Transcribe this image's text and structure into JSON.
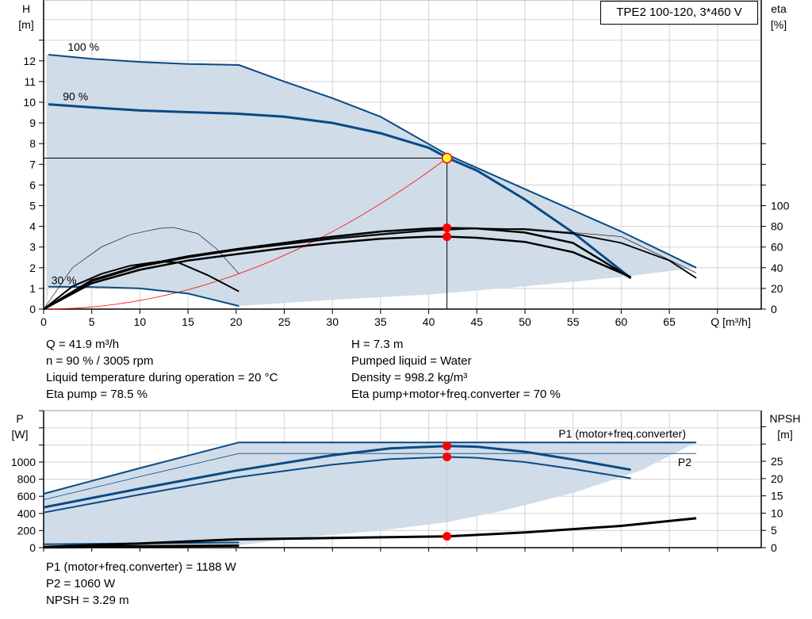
{
  "title": "TPE2 100-120, 3*460 V",
  "colors": {
    "curve": "#0a4a85",
    "fill": "#d0dce8",
    "eta": "#000000",
    "system": "#ff0000",
    "dot": "#ff0000",
    "op_point": "#ffff33",
    "grid": "#d9d9d9"
  },
  "chart_data": [
    {
      "type": "line",
      "ylabel_left": [
        "H",
        "[m]"
      ],
      "ylabel_right": [
        "eta",
        "[%]"
      ],
      "xlabel": "Q [m³/h]",
      "xlim": [
        0,
        74.5
      ],
      "ylim": [
        0,
        15
      ],
      "xticks": [
        0,
        5,
        10,
        15,
        20,
        25,
        30,
        35,
        40,
        45,
        50,
        55,
        60,
        65
      ],
      "yticks": [
        0,
        1,
        2,
        3,
        4,
        5,
        6,
        7,
        8,
        9,
        10,
        11,
        12
      ],
      "yticks_right": [
        0,
        20,
        40,
        60,
        80,
        100
      ],
      "grid": true,
      "curve_labels": [
        {
          "text": "100 %",
          "q": 2.5,
          "h": 12.5
        },
        {
          "text": "90 %",
          "q": 2,
          "h": 10.1
        },
        {
          "text": "30 %",
          "q": 0.8,
          "h": 1.2
        }
      ],
      "head_curves": [
        {
          "speed": "100 %",
          "points": [
            [
              0.5,
              12.3
            ],
            [
              5,
              12.1
            ],
            [
              10,
              11.95
            ],
            [
              15,
              11.85
            ],
            [
              20.3,
              11.8
            ],
            [
              25,
              11.0
            ],
            [
              30,
              10.2
            ],
            [
              35,
              9.3
            ],
            [
              42,
              7.45
            ],
            [
              50,
              5.8
            ],
            [
              60,
              3.75
            ],
            [
              67.8,
              2.0
            ]
          ]
        },
        {
          "speed": "90 %",
          "points": [
            [
              0.5,
              9.9
            ],
            [
              5,
              9.75
            ],
            [
              10,
              9.6
            ],
            [
              15,
              9.52
            ],
            [
              20,
              9.45
            ],
            [
              25,
              9.3
            ],
            [
              30,
              9.0
            ],
            [
              35,
              8.5
            ],
            [
              40,
              7.8
            ],
            [
              42,
              7.3
            ],
            [
              45,
              6.7
            ],
            [
              50,
              5.3
            ],
            [
              55,
              3.7
            ],
            [
              61,
              1.5
            ]
          ]
        },
        {
          "speed": "30 %",
          "points": [
            [
              0.5,
              1.08
            ],
            [
              5,
              1.07
            ],
            [
              10,
              1.0
            ],
            [
              15,
              0.75
            ],
            [
              20.3,
              0.15
            ]
          ]
        }
      ],
      "area_lower_boundary": [
        [
          67.8,
          2.0
        ],
        [
          60,
          1.55
        ],
        [
          50,
          1.1
        ],
        [
          40,
          0.7
        ],
        [
          30,
          0.45
        ],
        [
          20.3,
          0.15
        ]
      ],
      "eta_curves_percent": [
        {
          "points": [
            [
              0,
              0
            ],
            [
              5,
              28
            ],
            [
              10,
              42
            ],
            [
              15,
              51
            ],
            [
              20,
              58
            ],
            [
              25,
              64
            ],
            [
              30,
              70
            ],
            [
              35,
              75
            ],
            [
              40,
              78
            ],
            [
              42,
              78.5
            ],
            [
              45,
              78
            ],
            [
              50,
              74
            ],
            [
              55,
              64
            ],
            [
              61,
              30
            ]
          ],
          "width": 2.5
        },
        {
          "points": [
            [
              0,
              0
            ],
            [
              5,
              25
            ],
            [
              10,
              38
            ],
            [
              15,
              47
            ],
            [
              20,
              53
            ],
            [
              25,
              59
            ],
            [
              30,
              64
            ],
            [
              35,
              68
            ],
            [
              40,
              70
            ],
            [
              42,
              70
            ],
            [
              45,
              69
            ],
            [
              50,
              65
            ],
            [
              55,
              55
            ],
            [
              61,
              31
            ]
          ],
          "width": 2.5
        },
        {
          "points": [
            [
              0,
              0
            ],
            [
              5,
              27
            ],
            [
              10,
              41
            ],
            [
              15,
              50
            ],
            [
              20,
              57
            ],
            [
              30,
              68
            ],
            [
              40,
              76
            ],
            [
              45,
              78
            ],
            [
              50,
              77
            ],
            [
              55,
              73
            ],
            [
              60,
              64
            ],
            [
              65,
              47
            ],
            [
              67.8,
              30
            ]
          ],
          "width": 1.8
        },
        {
          "points": [
            [
              0,
              0
            ],
            [
              5,
              27
            ],
            [
              10,
              41
            ],
            [
              20,
              58
            ],
            [
              30,
              69
            ],
            [
              40,
              77
            ],
            [
              50,
              78
            ],
            [
              60,
              70
            ],
            [
              67.8,
              35
            ]
          ],
          "width": 0.6
        },
        {
          "points": [
            [
              0,
              0
            ],
            [
              3,
              22
            ],
            [
              6,
              34
            ],
            [
              9,
              42
            ],
            [
              12,
              46
            ],
            [
              14,
              45
            ],
            [
              17,
              33
            ],
            [
              20.3,
              17
            ]
          ],
          "width": 2
        },
        {
          "points": [
            [
              0,
              0
            ],
            [
              3,
              40
            ],
            [
              6,
              60
            ],
            [
              9,
              72
            ],
            [
              12,
              78
            ],
            [
              13.5,
              79
            ],
            [
              16,
              73
            ],
            [
              18,
              58
            ],
            [
              20.3,
              34
            ]
          ],
          "width": 0.6
        }
      ],
      "system_curve": {
        "type": "quadratic",
        "through": [
          41.9,
          7.3
        ]
      },
      "duty_point": {
        "q": 41.9,
        "h": 7.3
      },
      "eta_points_percent": [
        78.5,
        70
      ]
    },
    {
      "type": "line",
      "ylabel_left": [
        "P",
        "[W]"
      ],
      "ylabel_right": [
        "NPSH",
        "[m]"
      ],
      "xlim": [
        0,
        74.5
      ],
      "ylim": [
        0,
        1600
      ],
      "yticks": [
        0,
        200,
        400,
        600,
        800,
        1000
      ],
      "yticks_right": [
        0,
        5,
        10,
        15,
        20,
        25
      ],
      "grid": true,
      "series_labels": [
        "P1 (motor+freq.converter)",
        "P2"
      ],
      "power_curves": [
        {
          "name": "P1 (motor+freq.converter)",
          "points": [
            [
              0,
              630
            ],
            [
              10,
              930
            ],
            [
              20.3,
              1230
            ],
            [
              67.8,
              1230
            ]
          ],
          "width": 2
        },
        {
          "name": "P2",
          "points": [
            [
              0,
              560
            ],
            [
              10,
              830
            ],
            [
              20.3,
              1100
            ],
            [
              67.8,
              1100
            ]
          ],
          "width": 0.8
        },
        {
          "points": [
            [
              0,
              470
            ],
            [
              10,
              690
            ],
            [
              20,
              900
            ],
            [
              30,
              1080
            ],
            [
              36,
              1160
            ],
            [
              42,
              1188
            ],
            [
              45,
              1180
            ],
            [
              50,
              1120
            ],
            [
              55,
              1030
            ],
            [
              61,
              910
            ]
          ],
          "width": 3
        },
        {
          "points": [
            [
              0,
              410
            ],
            [
              10,
              620
            ],
            [
              20,
              820
            ],
            [
              30,
              970
            ],
            [
              36,
              1035
            ],
            [
              42,
              1060
            ],
            [
              45,
              1050
            ],
            [
              50,
              1000
            ],
            [
              55,
              920
            ],
            [
              61,
              810
            ]
          ],
          "width": 2
        },
        {
          "points": [
            [
              0,
              40
            ],
            [
              20.3,
              60
            ]
          ],
          "width": 2
        }
      ],
      "area_lower_boundary": [
        [
          67.8,
          1230
        ],
        [
          62,
          900
        ],
        [
          55,
          640
        ],
        [
          48,
          440
        ],
        [
          42,
          300
        ],
        [
          35,
          200
        ],
        [
          28,
          130
        ],
        [
          20.3,
          30
        ],
        [
          0,
          30
        ]
      ],
      "npsh_curves_m": [
        {
          "points": [
            [
              0,
              0.2
            ],
            [
              10,
              1.2
            ],
            [
              20,
              2.4
            ],
            [
              30,
              2.8
            ],
            [
              41.9,
              3.29
            ],
            [
              50,
              4.4
            ],
            [
              60,
              6.3
            ],
            [
              67.8,
              8.5
            ]
          ],
          "width": 3
        },
        {
          "points": [
            [
              0,
              0.1
            ],
            [
              10,
              0.4
            ],
            [
              20.3,
              0.6
            ]
          ],
          "width": 3
        }
      ],
      "duty_points": {
        "q": 41.9,
        "p1": 1188,
        "p2": 1060,
        "npsh": 3.29
      }
    }
  ],
  "info_top_left": [
    "Q = 41.9 m³/h",
    "n = 90 % / 3005 rpm",
    "Liquid temperature during operation = 20 °C",
    "Eta pump = 78.5 %"
  ],
  "info_top_right": [
    "H = 7.3 m",
    "Pumped liquid = Water",
    "Density = 998.2 kg/m³",
    "Eta pump+motor+freq.converter = 70 %"
  ],
  "info_bottom": [
    "P1 (motor+freq.converter) = 1188 W",
    "P2 = 1060 W",
    "NPSH = 3.29 m"
  ]
}
